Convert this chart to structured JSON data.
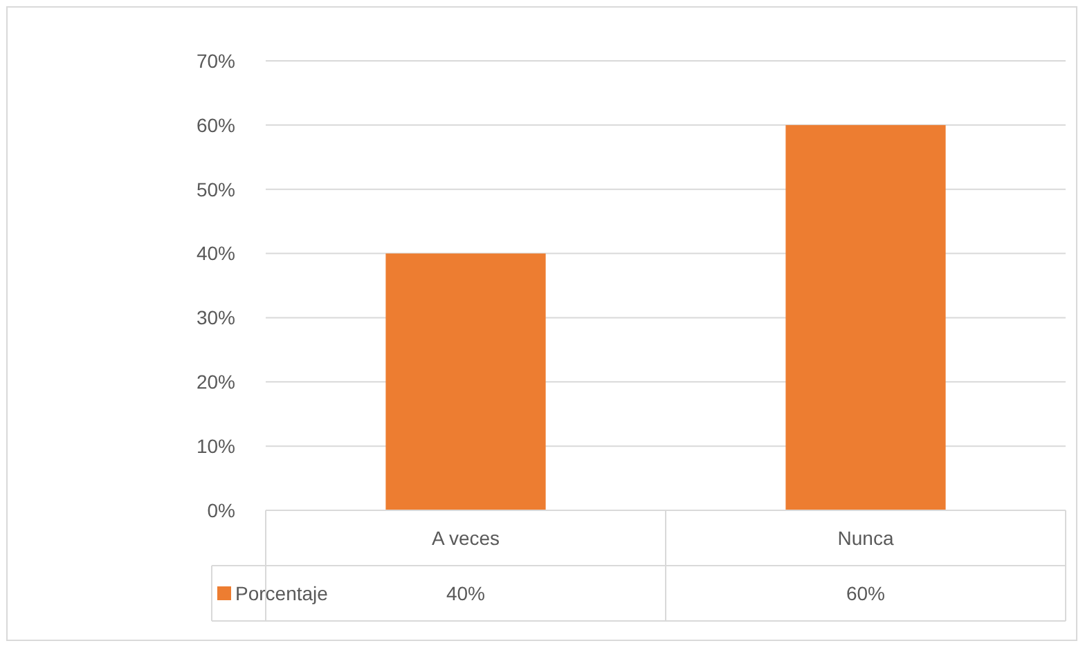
{
  "chart_data": {
    "type": "bar",
    "categories": [
      "A veces",
      "Nunca"
    ],
    "series": [
      {
        "name": "Porcentaje",
        "color": "#ed7d31",
        "values": [
          40,
          60
        ],
        "value_labels": [
          "40%",
          "60%"
        ]
      }
    ],
    "ylim": [
      0,
      70
    ],
    "yticks": [
      {
        "value": 0,
        "label": "0%"
      },
      {
        "value": 10,
        "label": "10%"
      },
      {
        "value": 20,
        "label": "20%"
      },
      {
        "value": 30,
        "label": "30%"
      },
      {
        "value": 40,
        "label": "40%"
      },
      {
        "value": 50,
        "label": "50%"
      },
      {
        "value": 60,
        "label": "60%"
      },
      {
        "value": 70,
        "label": "70%"
      }
    ],
    "grid": "y",
    "legend": "bottom"
  }
}
